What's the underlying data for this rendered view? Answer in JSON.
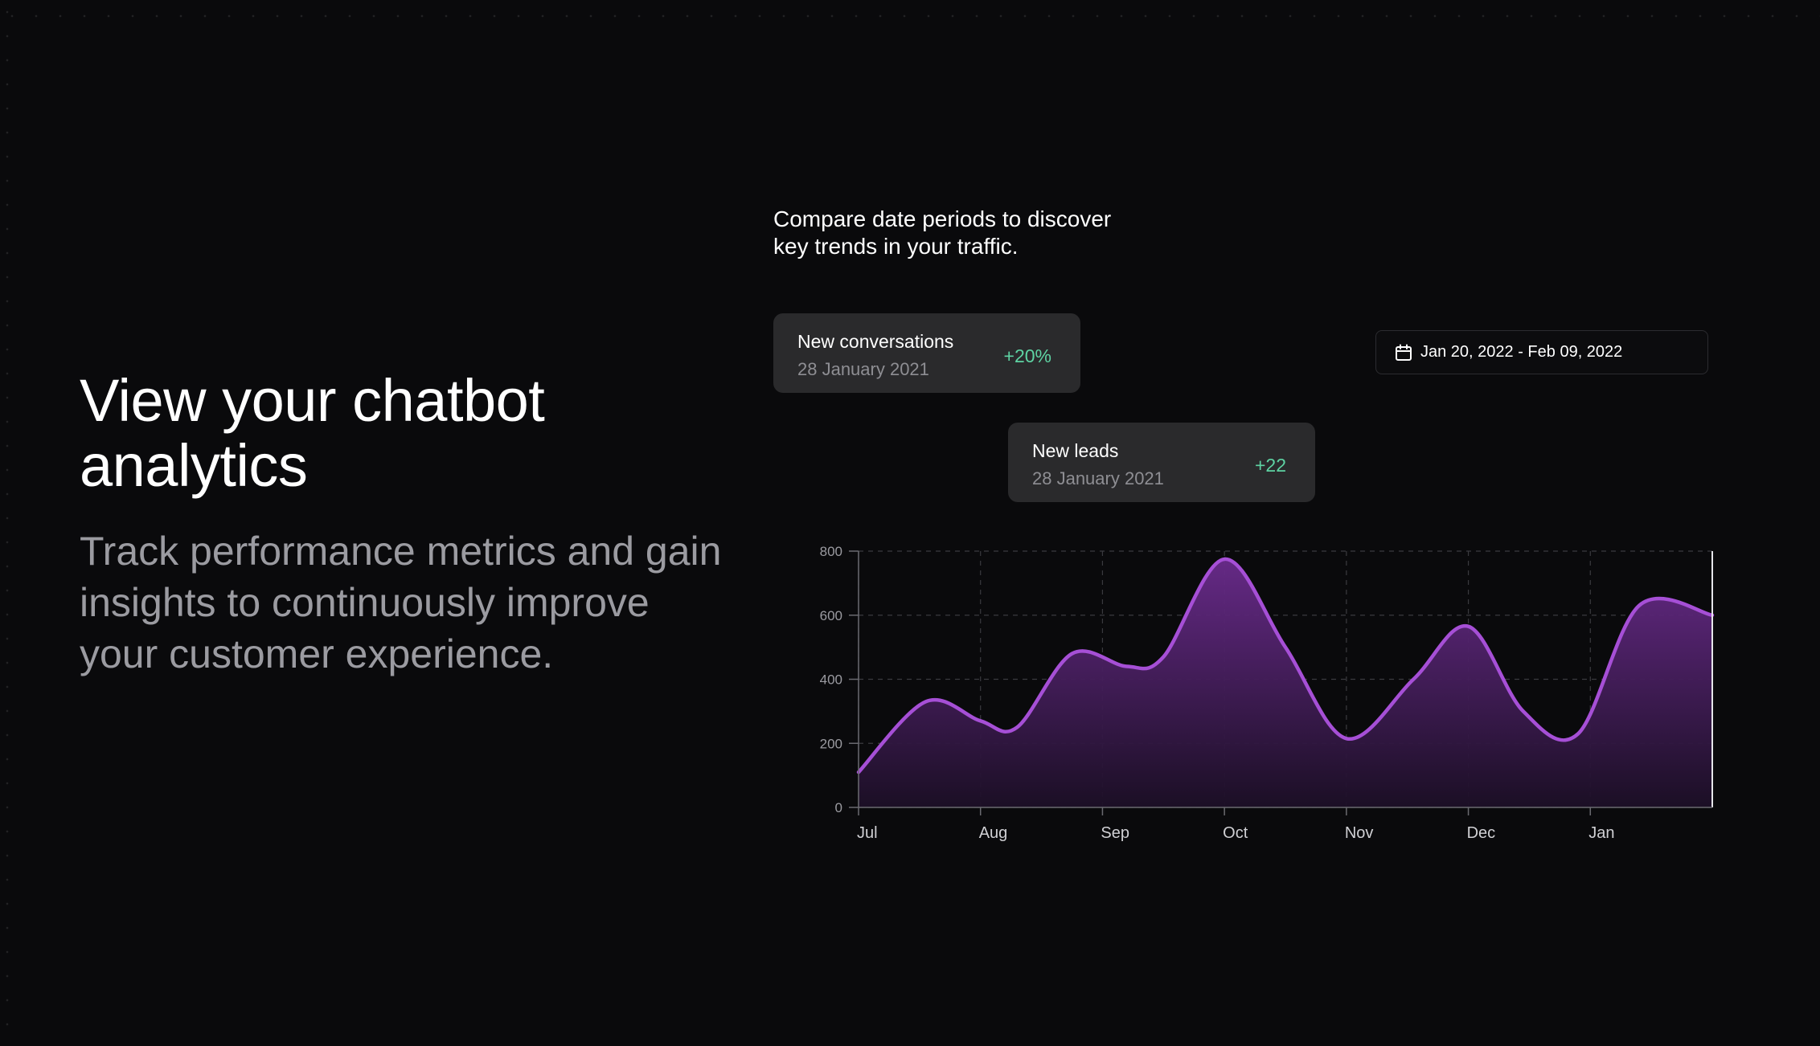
{
  "hero": {
    "title_line1": "View your chatbot",
    "title_line2": "analytics",
    "subtitle": "Track performance metrics and gain insights to continuously improve your customer experience."
  },
  "caption": {
    "line1": "Compare date periods to discover",
    "line2": "key trends in your traffic."
  },
  "cards": {
    "conversations": {
      "title": "New conversations",
      "date": "28 January 2021",
      "delta": "+20%"
    },
    "leads": {
      "title": "New leads",
      "date": "28 January 2021",
      "delta": "+22"
    }
  },
  "date_range": {
    "icon": "calendar-icon",
    "label": "Jan 20, 2022 - Feb 09, 2022"
  },
  "colors": {
    "background": "#0a0a0c",
    "card": "#2a2a2c",
    "accent_line": "#a64fd6",
    "positive": "#5ed3a3"
  },
  "chart_data": {
    "type": "area",
    "x": [
      0,
      0.55,
      1.0,
      1.3,
      1.75,
      2.2,
      2.5,
      3.0,
      3.5,
      4.0,
      4.55,
      5.0,
      5.45,
      5.9,
      6.4,
      7.0
    ],
    "y": [
      110,
      330,
      270,
      250,
      480,
      440,
      470,
      775,
      500,
      215,
      400,
      565,
      300,
      230,
      630,
      600
    ],
    "x_tick_labels": [
      "Jul",
      "Aug",
      "Sep",
      "Oct",
      "Nov",
      "Dec",
      "Jan"
    ],
    "y_ticks": [
      0,
      200,
      400,
      600,
      800
    ],
    "ylim": [
      0,
      800
    ],
    "xlim": [
      0,
      7
    ],
    "grid": true,
    "line_color": "#a64fd6"
  }
}
